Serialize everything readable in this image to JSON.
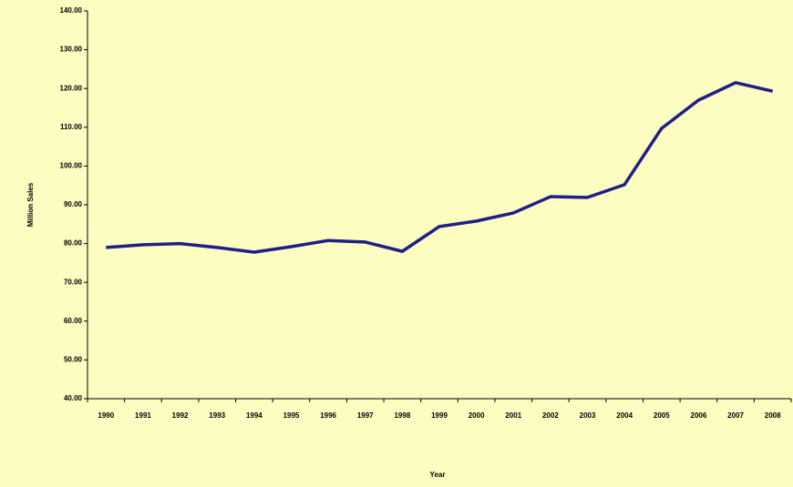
{
  "chart_data": {
    "type": "line",
    "x_label": "Year",
    "y_label": "Million Sales",
    "categories": [
      "1990",
      "1991",
      "1992",
      "1993",
      "1994",
      "1995",
      "1996",
      "1997",
      "1998",
      "1999",
      "2000",
      "2001",
      "2002",
      "2003",
      "2004",
      "2005",
      "2006",
      "2007",
      "2008"
    ],
    "series": [
      {
        "name": "Million Sales",
        "color": "#1f1f85",
        "values": [
          79.0,
          79.7,
          80.0,
          79.0,
          77.8,
          79.2,
          80.8,
          80.4,
          78.0,
          84.4,
          85.8,
          87.9,
          92.1,
          91.9,
          95.2,
          109.7,
          117.0,
          121.5,
          119.3
        ]
      }
    ],
    "ylim": [
      40,
      140
    ],
    "yticks": [
      {
        "value": 40,
        "label": "40.00"
      },
      {
        "value": 50,
        "label": "50.00"
      },
      {
        "value": 60,
        "label": "60.00"
      },
      {
        "value": 70,
        "label": "70.00"
      },
      {
        "value": 80,
        "label": "80.00"
      },
      {
        "value": 90,
        "label": "90.00"
      },
      {
        "value": 100,
        "label": "100.00"
      },
      {
        "value": 110,
        "label": "110.00"
      },
      {
        "value": 120,
        "label": "120.00"
      },
      {
        "value": 130,
        "label": "130.00"
      },
      {
        "value": 140,
        "label": "140.00"
      }
    ],
    "grid": false
  }
}
